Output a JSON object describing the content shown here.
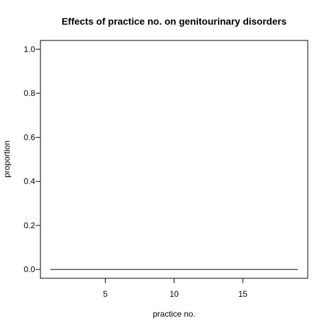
{
  "chart_data": {
    "type": "line",
    "title": "Effects of practice no. on genitourinary disorders",
    "xlabel": "practice no.",
    "ylabel": "proportion",
    "xlim": [
      0.28,
      19.72
    ],
    "ylim": [
      -0.04,
      1.04
    ],
    "x_ticks": [
      5,
      10,
      15
    ],
    "y_ticks": [
      "0.0",
      "0.2",
      "0.4",
      "0.6",
      "0.8",
      "1.0"
    ],
    "grid": false,
    "series": [
      {
        "name": "proportion",
        "x": [
          1,
          2,
          3,
          4,
          5,
          6,
          7,
          8,
          9,
          10,
          11,
          12,
          13,
          14,
          15,
          16,
          17,
          18,
          19
        ],
        "values": [
          0,
          0,
          0,
          0,
          0,
          0,
          0,
          0,
          0,
          0,
          0,
          0,
          0,
          0,
          0,
          0,
          0,
          0,
          0
        ],
        "color": "#000000"
      }
    ]
  }
}
